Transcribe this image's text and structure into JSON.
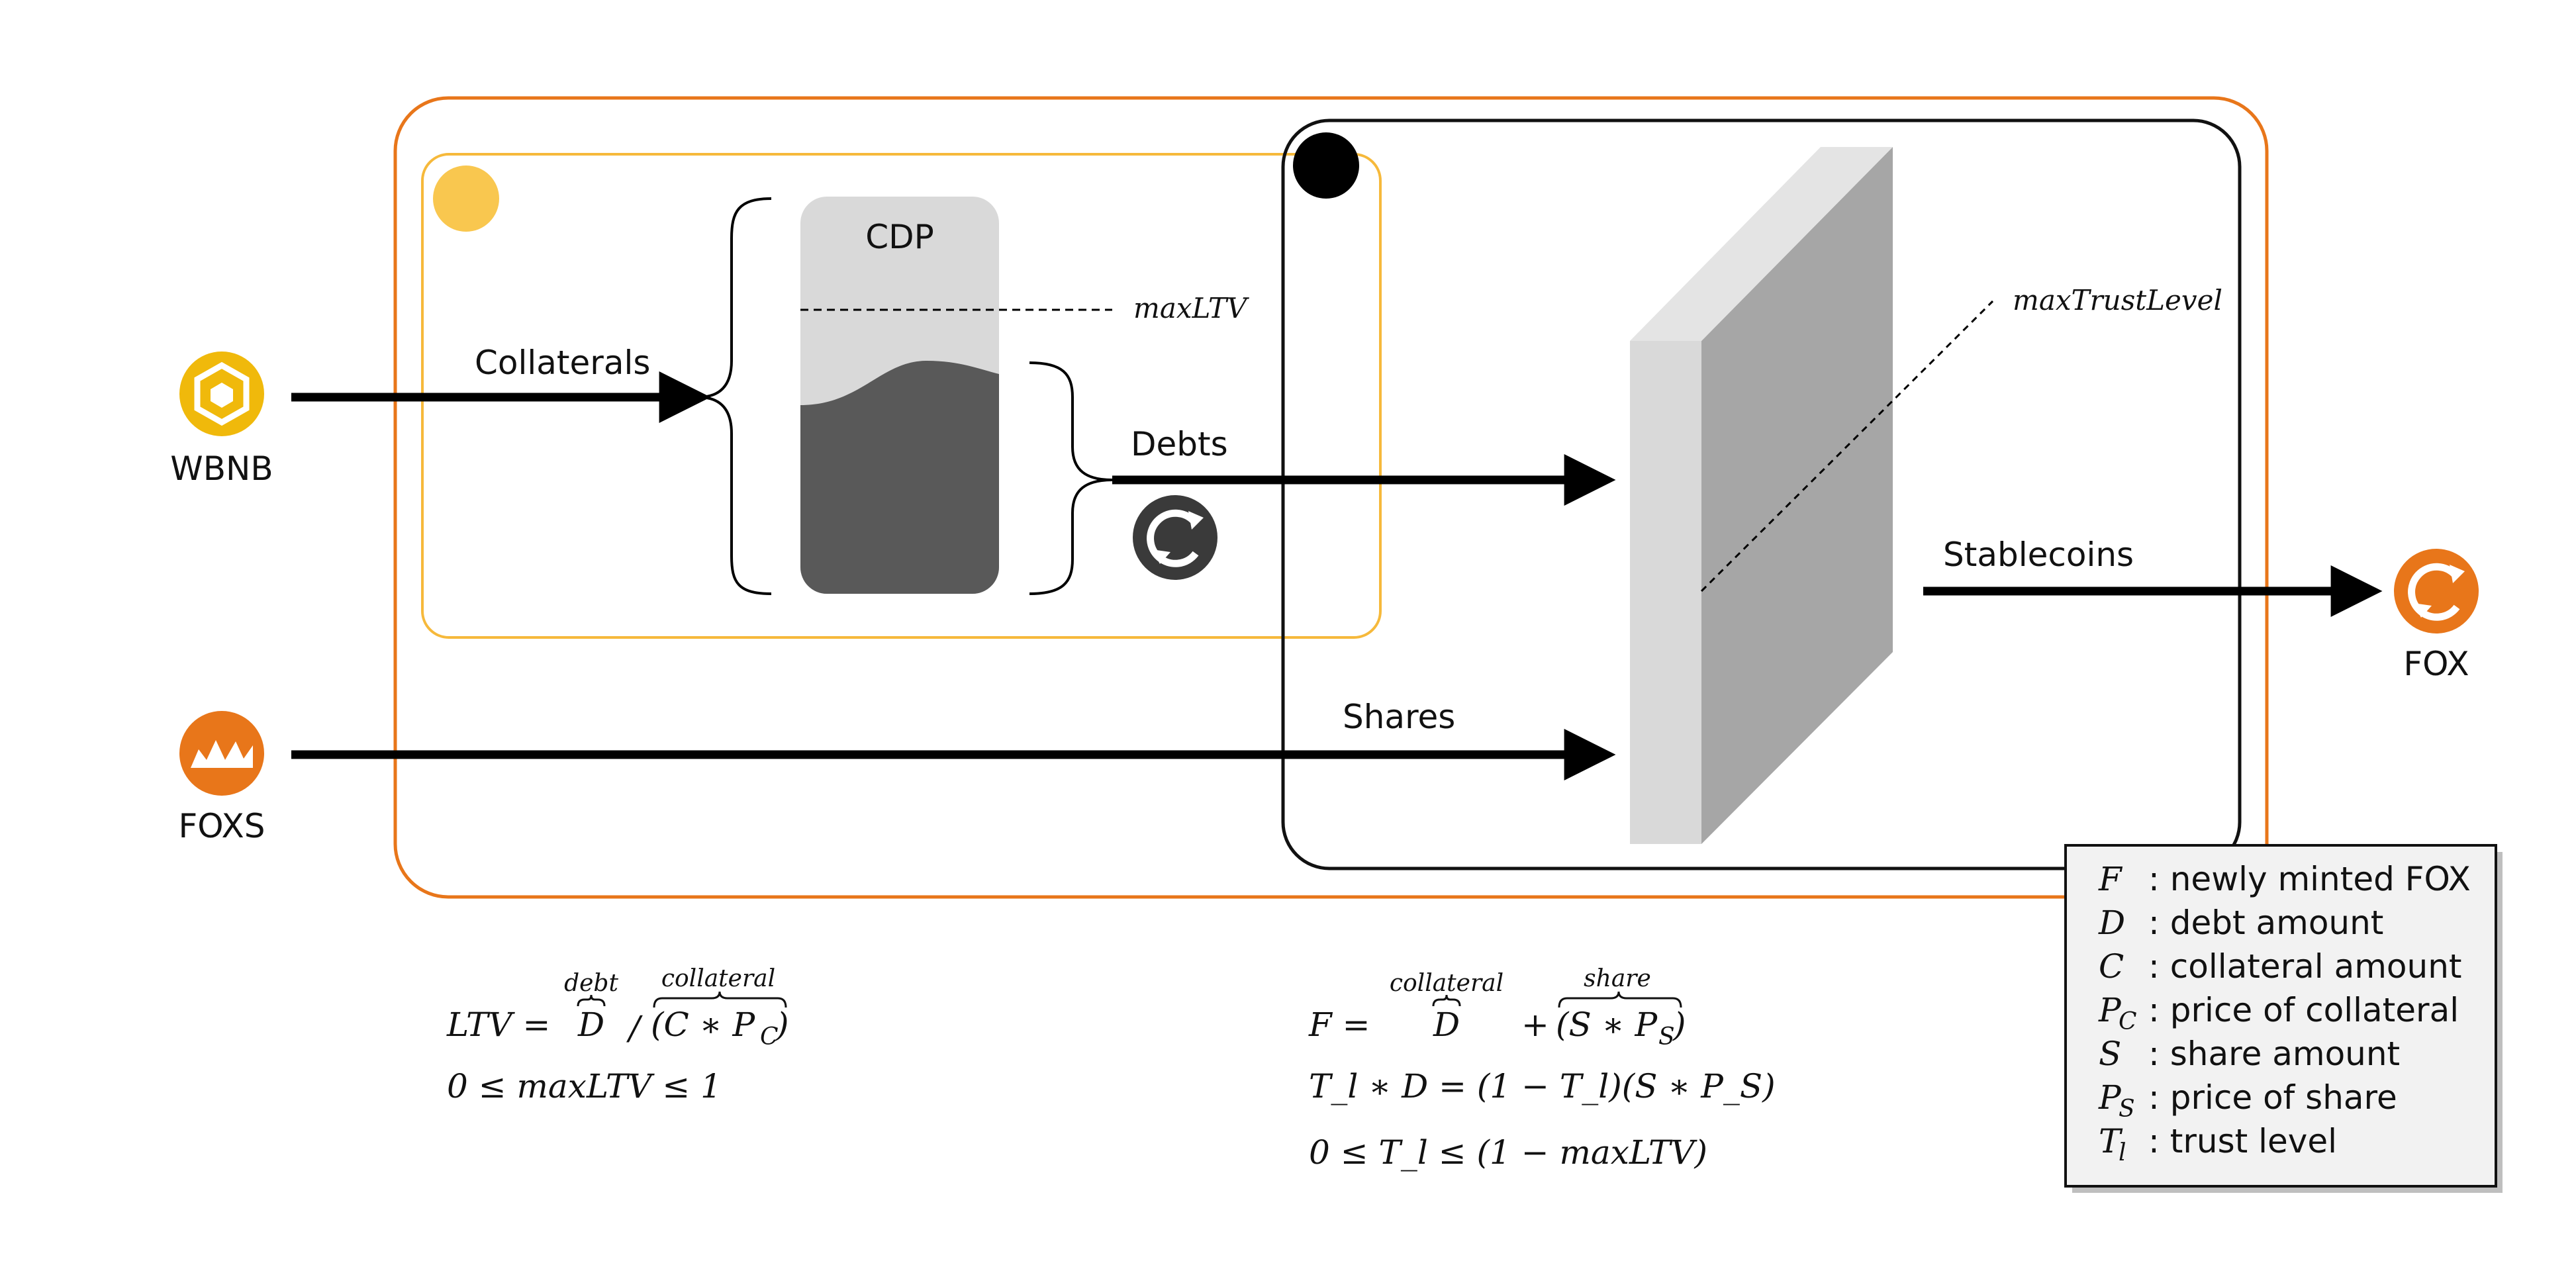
{
  "tokens": {
    "wbnb": {
      "label": "WBNB",
      "color": "#F0B90B",
      "icon": "bnb-cube-icon"
    },
    "foxs": {
      "label": "FOXS",
      "color": "#E8761A",
      "icon": "crown-icon"
    },
    "fox": {
      "label": "FOX",
      "color": "#E8761A",
      "icon": "fox-cycle-icon"
    },
    "debt_badge": {
      "color": "#3A3A3A",
      "icon": "fox-cycle-icon"
    }
  },
  "colors": {
    "outer_box": "#E8761A",
    "cdp_box": "#F6B93B",
    "cdp_dot": "#F9C74F",
    "trust_box": "#111111",
    "cdp_top": "#D9D9D9",
    "cdp_fill": "#595959",
    "slab_front": "#D9D9D9",
    "slab_side": "#A6A6A6",
    "slab_top": "#E4E4E4",
    "legend_bg": "#F2F2F2"
  },
  "flow_labels": {
    "collaterals": "Collaterals",
    "debts": "Debts",
    "shares": "Shares",
    "stablecoins": "Stablecoins"
  },
  "cdp": {
    "title": "CDP",
    "max_ltv_label": "maxLTV"
  },
  "trust": {
    "max_trust_label": "maxTrustLevel"
  },
  "formulas_left": {
    "line1_lhs": "LTV =",
    "debt_brace": "debt",
    "debt_var": "D",
    "slash": "/",
    "collateral_brace": "collateral",
    "collateral_expr": "(C ∗ P",
    "collateral_sub": "C",
    "collateral_close": ")",
    "line2": "0 ≤ maxLTV ≤ 1"
  },
  "formulas_right": {
    "line1_lhs": "F =",
    "collateral_brace": "collateral",
    "debt_var": "D",
    "plus": "+",
    "share_brace": "share",
    "share_expr": "(S ∗ P",
    "share_sub": "S",
    "share_close": ")",
    "line2": "T_l ∗ D = (1 − T_l)(S ∗ P_S)",
    "line3": "0 ≤ T_l ≤ (1 − maxLTV)"
  },
  "legend": [
    {
      "sym": "F",
      "sub": "",
      "desc": ": newly minted FOX"
    },
    {
      "sym": "D",
      "sub": "",
      "desc": ": debt amount"
    },
    {
      "sym": "C",
      "sub": "",
      "desc": ": collateral amount"
    },
    {
      "sym": "P",
      "sub": "C",
      "desc": ": price of collateral"
    },
    {
      "sym": "S",
      "sub": "",
      "desc": ": share amount"
    },
    {
      "sym": "P",
      "sub": "S",
      "desc": ": price of share"
    },
    {
      "sym": "T",
      "sub": "l",
      "desc": ": trust level"
    }
  ]
}
